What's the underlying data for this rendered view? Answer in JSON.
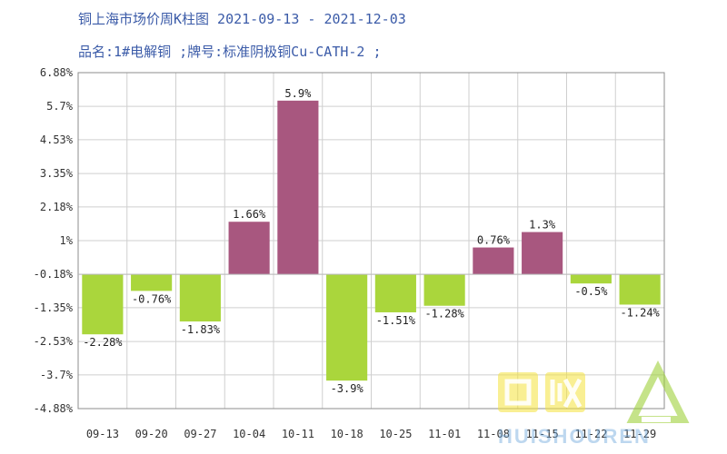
{
  "chart_data": {
    "type": "bar",
    "title": "铜上海市场价周K柱图 2021-09-13 - 2021-12-03",
    "subtitle": "品名:1#电解铜 ;牌号:标准阴极铜Cu-CATH-2 ;",
    "categories": [
      "09-13",
      "09-20",
      "09-27",
      "10-04",
      "10-11",
      "10-18",
      "10-25",
      "11-01",
      "11-08",
      "11-15",
      "11-22",
      "11-29"
    ],
    "values": [
      -2.28,
      -0.76,
      -1.83,
      1.66,
      5.9,
      -3.9,
      -1.51,
      -1.28,
      0.76,
      1.3,
      -0.5,
      -1.24
    ],
    "value_labels": [
      "-2.28%",
      "-0.76%",
      "-1.83%",
      "1.66%",
      "5.9%",
      "-3.9%",
      "-1.51%",
      "-1.28%",
      "0.76%",
      "1.3%",
      "-0.5%",
      "-1.24%"
    ],
    "yticks": [
      6.88,
      5.7,
      4.53,
      3.35,
      2.18,
      1,
      -0.18,
      -1.35,
      -2.53,
      -3.7,
      -4.88
    ],
    "ytick_labels": [
      "6.88%",
      "5.7%",
      "4.53%",
      "3.35%",
      "2.18%",
      "1%",
      "-0.18%",
      "-1.35%",
      "-2.53%",
      "-3.7%",
      "-4.88%"
    ],
    "ylim": [
      -4.88,
      6.88
    ],
    "baseline": -0.18,
    "grid": true,
    "colors": {
      "positive": "#a8577f",
      "negative": "#aad63c",
      "grid": "#cfcfcf",
      "axis": "#8c8c8c"
    }
  },
  "watermark": {
    "text": "HUISHOUREN"
  }
}
